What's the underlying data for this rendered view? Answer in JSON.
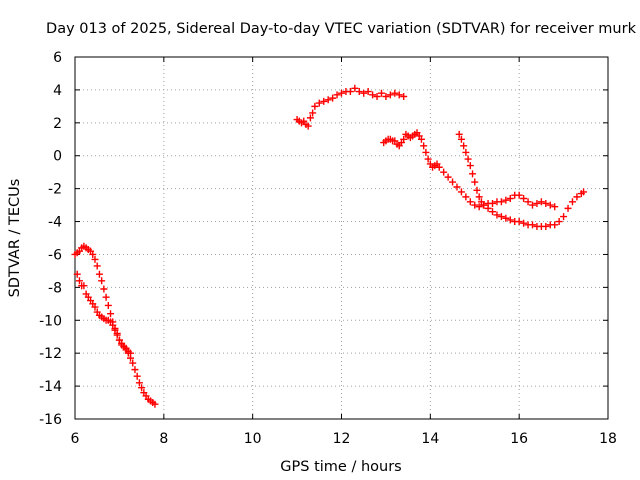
{
  "chart_data": {
    "type": "scatter",
    "title": "Day 013 of 2025, Sidereal Day-to-day VTEC variation (SDTVAR) for receiver murk",
    "xlabel": "GPS time / hours",
    "ylabel": "SDTVAR / TECUs",
    "xlim": [
      6,
      18
    ],
    "ylim": [
      -16,
      6
    ],
    "xticks": [
      6,
      8,
      10,
      12,
      14,
      16,
      18
    ],
    "yticks": [
      -16,
      -14,
      -12,
      -10,
      -8,
      -6,
      -4,
      -2,
      0,
      2,
      4,
      6
    ],
    "grid": true,
    "marker": "plus",
    "color": "#ff0000",
    "series": [
      {
        "x": [
          6.0,
          6.05,
          6.1,
          6.15,
          6.2,
          6.25,
          6.3,
          6.35,
          6.4,
          6.45,
          6.5,
          6.55,
          6.6,
          6.65,
          6.7,
          6.75,
          6.8,
          6.85,
          6.9,
          6.95,
          7.0,
          7.05,
          7.1,
          7.15,
          7.2,
          7.25,
          7.3,
          7.35,
          7.4,
          7.45,
          7.5,
          7.55,
          7.6,
          7.65,
          7.7,
          7.75,
          7.8
        ],
        "y": [
          -6.0,
          -5.9,
          -5.8,
          -5.6,
          -5.5,
          -5.6,
          -5.7,
          -5.8,
          -6.0,
          -6.3,
          -6.7,
          -7.2,
          -7.6,
          -8.1,
          -8.6,
          -9.1,
          -9.6,
          -10.1,
          -10.5,
          -10.9,
          -11.2,
          -11.4,
          -11.6,
          -11.8,
          -12.0,
          -12.3,
          -12.6,
          -13.0,
          -13.4,
          -13.8,
          -14.1,
          -14.4,
          -14.6,
          -14.8,
          -14.9,
          -15.0,
          -15.1
        ]
      },
      {
        "x": [
          6.05,
          6.1,
          6.15,
          6.2,
          6.25,
          6.3,
          6.35,
          6.4,
          6.45,
          6.5,
          6.55,
          6.6,
          6.65,
          6.7,
          6.75,
          6.8,
          6.85,
          6.9,
          6.95,
          7.0,
          7.05,
          7.1,
          7.15,
          7.2,
          7.25
        ],
        "y": [
          -7.2,
          -7.6,
          -7.9,
          -7.9,
          -8.4,
          -8.6,
          -8.8,
          -9.0,
          -9.2,
          -9.5,
          -9.7,
          -9.8,
          -9.9,
          -10.0,
          -10.0,
          -10.1,
          -10.3,
          -10.6,
          -10.8,
          -11.2,
          -11.5,
          -11.6,
          -11.7,
          -11.9,
          -12.0
        ]
      },
      {
        "x": [
          11.0,
          11.05,
          11.1,
          11.15,
          11.2,
          11.25,
          11.3,
          11.35,
          11.4,
          11.5,
          11.6,
          11.7,
          11.8,
          11.9,
          12.0,
          12.1,
          12.2,
          12.3,
          12.4,
          12.5,
          12.6,
          12.7,
          12.8,
          12.9,
          13.0,
          13.1,
          13.2,
          13.3,
          13.4
        ],
        "y": [
          2.2,
          2.1,
          2.0,
          2.1,
          1.9,
          1.8,
          2.3,
          2.6,
          3.0,
          3.2,
          3.3,
          3.4,
          3.5,
          3.7,
          3.8,
          3.9,
          3.9,
          4.1,
          3.9,
          3.8,
          3.9,
          3.7,
          3.6,
          3.8,
          3.6,
          3.7,
          3.8,
          3.7,
          3.6
        ]
      },
      {
        "x": [
          12.95,
          13.0,
          13.05,
          13.1,
          13.15,
          13.2,
          13.25,
          13.3,
          13.35,
          13.4,
          13.45,
          13.5,
          13.55,
          13.6,
          13.65,
          13.7,
          13.75,
          13.8,
          13.85,
          13.9,
          13.95,
          14.0,
          14.05,
          14.1,
          14.15,
          14.2,
          14.3,
          14.4,
          14.5,
          14.6,
          14.7,
          14.8,
          14.9,
          15.0,
          15.1,
          15.2,
          15.3,
          15.4,
          15.5,
          15.6,
          15.7,
          15.8,
          15.9,
          16.0,
          16.1,
          16.2,
          16.3,
          16.4,
          16.5,
          16.6,
          16.7,
          16.8
        ],
        "y": [
          0.8,
          0.9,
          1.0,
          1.0,
          0.9,
          0.9,
          0.7,
          0.6,
          0.8,
          1.0,
          1.3,
          1.2,
          1.1,
          1.2,
          1.3,
          1.4,
          1.2,
          1.0,
          0.6,
          0.2,
          -0.2,
          -0.5,
          -0.7,
          -0.6,
          -0.5,
          -0.7,
          -1.0,
          -1.3,
          -1.6,
          -1.9,
          -2.2,
          -2.5,
          -2.8,
          -3.0,
          -3.1,
          -3.0,
          -2.9,
          -2.9,
          -2.8,
          -2.8,
          -2.7,
          -2.6,
          -2.4,
          -2.4,
          -2.6,
          -2.8,
          -3.0,
          -2.9,
          -2.8,
          -2.9,
          -3.0,
          -3.1
        ]
      },
      {
        "x": [
          14.65,
          14.7,
          14.75,
          14.8,
          14.85,
          14.9,
          14.95,
          15.0,
          15.05,
          15.1,
          15.15,
          15.2,
          15.3,
          15.4,
          15.5,
          15.6,
          15.7,
          15.8,
          15.9,
          16.0,
          16.1,
          16.2,
          16.3,
          16.4,
          16.5,
          16.6,
          16.7,
          16.8,
          16.9,
          17.0,
          17.1,
          17.2,
          17.3,
          17.4,
          17.45
        ],
        "y": [
          1.3,
          1.0,
          0.6,
          0.2,
          -0.2,
          -0.6,
          -1.1,
          -1.6,
          -2.1,
          -2.5,
          -2.8,
          -3.0,
          -3.2,
          -3.4,
          -3.6,
          -3.7,
          -3.8,
          -3.9,
          -4.0,
          -4.0,
          -4.1,
          -4.2,
          -4.2,
          -4.3,
          -4.3,
          -4.3,
          -4.2,
          -4.2,
          -4.0,
          -3.7,
          -3.2,
          -2.8,
          -2.5,
          -2.3,
          -2.2
        ]
      }
    ]
  }
}
